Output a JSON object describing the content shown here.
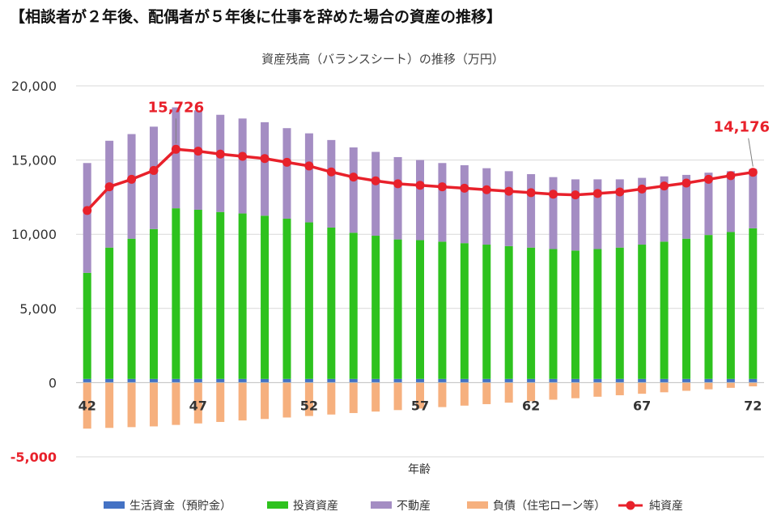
{
  "page": {
    "heading": "【相談者が２年後、配偶者が５年後に仕事を辞めた場合の資産の推移】"
  },
  "colors": {
    "cash": "#4472c4",
    "investment": "#2ec21e",
    "real_estate": "#a48dc3",
    "debt": "#f6b07e",
    "net_assets": "#e8212b",
    "negative_tick": "#e8212b"
  },
  "chart_data": {
    "type": "bar",
    "title": "資産残高（バランスシート）の推移（万円）",
    "xlabel": "年齢",
    "ylabel": "",
    "ylim": [
      -5000,
      20000
    ],
    "y_ticks": [
      {
        "value": 20000,
        "label": "20,000"
      },
      {
        "value": 15000,
        "label": "15,000"
      },
      {
        "value": 10000,
        "label": "10,000"
      },
      {
        "value": 5000,
        "label": "5,000"
      },
      {
        "value": 0,
        "label": "0"
      },
      {
        "value": -5000,
        "label": "-5,000"
      }
    ],
    "x_tick_labels": [
      {
        "age": 42,
        "label": "42"
      },
      {
        "age": 47,
        "label": "47"
      },
      {
        "age": 52,
        "label": "52"
      },
      {
        "age": 57,
        "label": "57"
      },
      {
        "age": 62,
        "label": "62"
      },
      {
        "age": 67,
        "label": "67"
      },
      {
        "age": 72,
        "label": "72"
      }
    ],
    "x": [
      42,
      43,
      44,
      45,
      46,
      47,
      48,
      49,
      50,
      51,
      52,
      53,
      54,
      55,
      56,
      57,
      58,
      59,
      60,
      61,
      62,
      63,
      64,
      65,
      66,
      67,
      68,
      69,
      70,
      71,
      72
    ],
    "grid": true,
    "legend_position": "bottom",
    "series": [
      {
        "name": "生活資金（預貯金）",
        "type": "bar",
        "stack": "assets",
        "color_key": "cash",
        "values": [
          250,
          250,
          250,
          250,
          250,
          250,
          250,
          250,
          250,
          250,
          250,
          250,
          250,
          250,
          250,
          250,
          250,
          250,
          250,
          250,
          250,
          250,
          250,
          250,
          250,
          250,
          250,
          250,
          250,
          250,
          250
        ]
      },
      {
        "name": "投資資産",
        "type": "bar",
        "stack": "assets",
        "color_key": "investment",
        "values": [
          7150,
          8850,
          9450,
          10100,
          11500,
          11400,
          11250,
          11150,
          11000,
          10800,
          10550,
          10200,
          9850,
          9650,
          9400,
          9350,
          9250,
          9150,
          9050,
          8950,
          8850,
          8750,
          8650,
          8750,
          8850,
          9050,
          9250,
          9450,
          9700,
          9900,
          10150
        ]
      },
      {
        "name": "不動産",
        "type": "bar",
        "stack": "assets",
        "color_key": "real_estate",
        "values": [
          7400,
          7200,
          7050,
          6900,
          6800,
          6700,
          6550,
          6400,
          6300,
          6100,
          6000,
          5900,
          5750,
          5650,
          5550,
          5400,
          5300,
          5250,
          5150,
          5050,
          4950,
          4850,
          4800,
          4700,
          4600,
          4500,
          4400,
          4300,
          4200,
          4100,
          4000
        ]
      },
      {
        "name": "負債（住宅ローン等）",
        "type": "bar",
        "stack": "debt",
        "color_key": "debt",
        "values": [
          -3100,
          -3050,
          -3000,
          -2950,
          -2850,
          -2750,
          -2650,
          -2550,
          -2450,
          -2350,
          -2250,
          -2150,
          -2050,
          -1950,
          -1850,
          -1750,
          -1650,
          -1550,
          -1450,
          -1350,
          -1250,
          -1150,
          -1050,
          -950,
          -850,
          -750,
          -650,
          -550,
          -450,
          -350,
          -250
        ]
      },
      {
        "name": "純資産",
        "type": "line",
        "color_key": "net_assets",
        "values": [
          11600,
          13200,
          13700,
          14300,
          15726,
          15600,
          15400,
          15250,
          15100,
          14850,
          14600,
          14200,
          13850,
          13600,
          13400,
          13300,
          13200,
          13100,
          13000,
          12900,
          12800,
          12700,
          12650,
          12750,
          12850,
          13050,
          13250,
          13450,
          13700,
          13950,
          14176
        ]
      }
    ],
    "annotations": [
      {
        "text": "15,726",
        "age": 46,
        "value": 15726
      },
      {
        "text": "14,176",
        "age": 72,
        "value": 14176
      }
    ]
  }
}
